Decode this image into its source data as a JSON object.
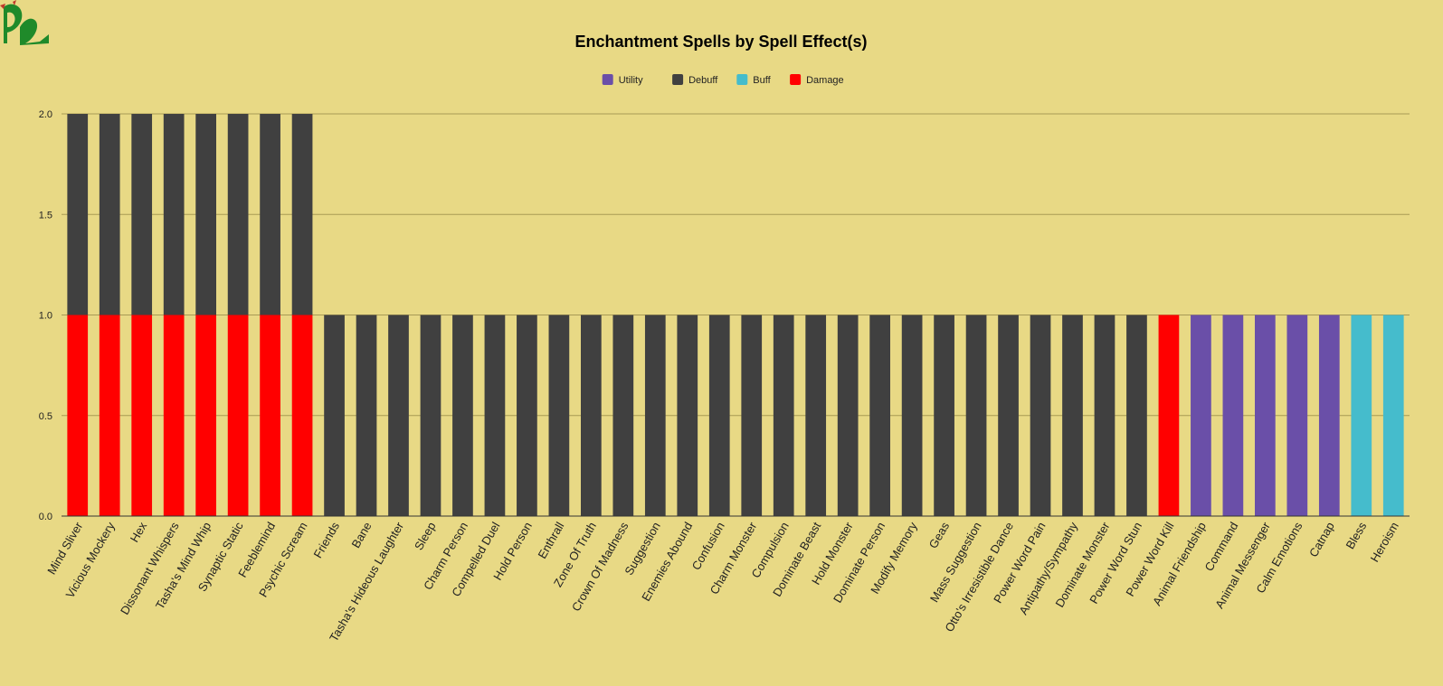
{
  "logo": {
    "icon": "dragon-logo-icon",
    "color": "#1f8a2a"
  },
  "chart_data": {
    "type": "bar",
    "stacked": true,
    "title": "Enchantment Spells by Spell Effect(s)",
    "xlabel": "",
    "ylabel": "",
    "ylim": [
      0,
      2
    ],
    "yticks": [
      "0.0",
      "0.5",
      "1.0",
      "1.5",
      "2.0"
    ],
    "grid": true,
    "legend_position": "top",
    "categories": [
      "Mind Sliver",
      "Vicious Mockery",
      "Hex",
      "Dissonant Whispers",
      "Tasha's Mind Whip",
      "Synaptic Static",
      "Feeblemind",
      "Psychic Scream",
      "Friends",
      "Bane",
      "Tasha's Hideous Laughter",
      "Sleep",
      "Charm Person",
      "Compelled Duel",
      "Hold Person",
      "Enthrall",
      "Zone Of Truth",
      "Crown Of Madness",
      "Suggestion",
      "Enemies Abound",
      "Confusion",
      "Charm Monster",
      "Compulsion",
      "Dominate Beast",
      "Hold Monster",
      "Dominate Person",
      "Modify Memory",
      "Geas",
      "Mass Suggestion",
      "Otto's Irresistible Dance",
      "Power Word Pain",
      "Antipathy/Sympathy",
      "Dominate Monster",
      "Power Word Stun",
      "Power Word Kill",
      "Animal Friendship",
      "Command",
      "Animal Messenger",
      "Calm Emotions",
      "Catnap",
      "Bless",
      "Heroism"
    ],
    "series": [
      {
        "name": "Utility",
        "color": "#6a4fa8",
        "values": [
          0,
          0,
          0,
          0,
          0,
          0,
          0,
          0,
          0,
          0,
          0,
          0,
          0,
          0,
          0,
          0,
          0,
          0,
          0,
          0,
          0,
          0,
          0,
          0,
          0,
          0,
          0,
          0,
          0,
          0,
          0,
          0,
          0,
          0,
          0,
          1,
          1,
          1,
          1,
          1,
          0,
          0
        ]
      },
      {
        "name": "Debuff",
        "color": "#404040",
        "values": [
          1,
          1,
          1,
          1,
          1,
          1,
          1,
          1,
          1,
          1,
          1,
          1,
          1,
          1,
          1,
          1,
          1,
          1,
          1,
          1,
          1,
          1,
          1,
          1,
          1,
          1,
          1,
          1,
          1,
          1,
          1,
          1,
          1,
          1,
          0,
          0,
          0,
          0,
          0,
          0,
          0,
          0
        ]
      },
      {
        "name": "Buff",
        "color": "#45bccc",
        "values": [
          0,
          0,
          0,
          0,
          0,
          0,
          0,
          0,
          0,
          0,
          0,
          0,
          0,
          0,
          0,
          0,
          0,
          0,
          0,
          0,
          0,
          0,
          0,
          0,
          0,
          0,
          0,
          0,
          0,
          0,
          0,
          0,
          0,
          0,
          0,
          0,
          0,
          0,
          0,
          0,
          1,
          1
        ]
      },
      {
        "name": "Damage",
        "color": "#ff0000",
        "values": [
          1,
          1,
          1,
          1,
          1,
          1,
          1,
          1,
          0,
          0,
          0,
          0,
          0,
          0,
          0,
          0,
          0,
          0,
          0,
          0,
          0,
          0,
          0,
          0,
          0,
          0,
          0,
          0,
          0,
          0,
          0,
          0,
          0,
          0,
          1,
          0,
          0,
          0,
          0,
          0,
          0,
          0
        ]
      }
    ],
    "stack_order": [
      "Damage",
      "Debuff",
      "Utility",
      "Buff"
    ]
  }
}
